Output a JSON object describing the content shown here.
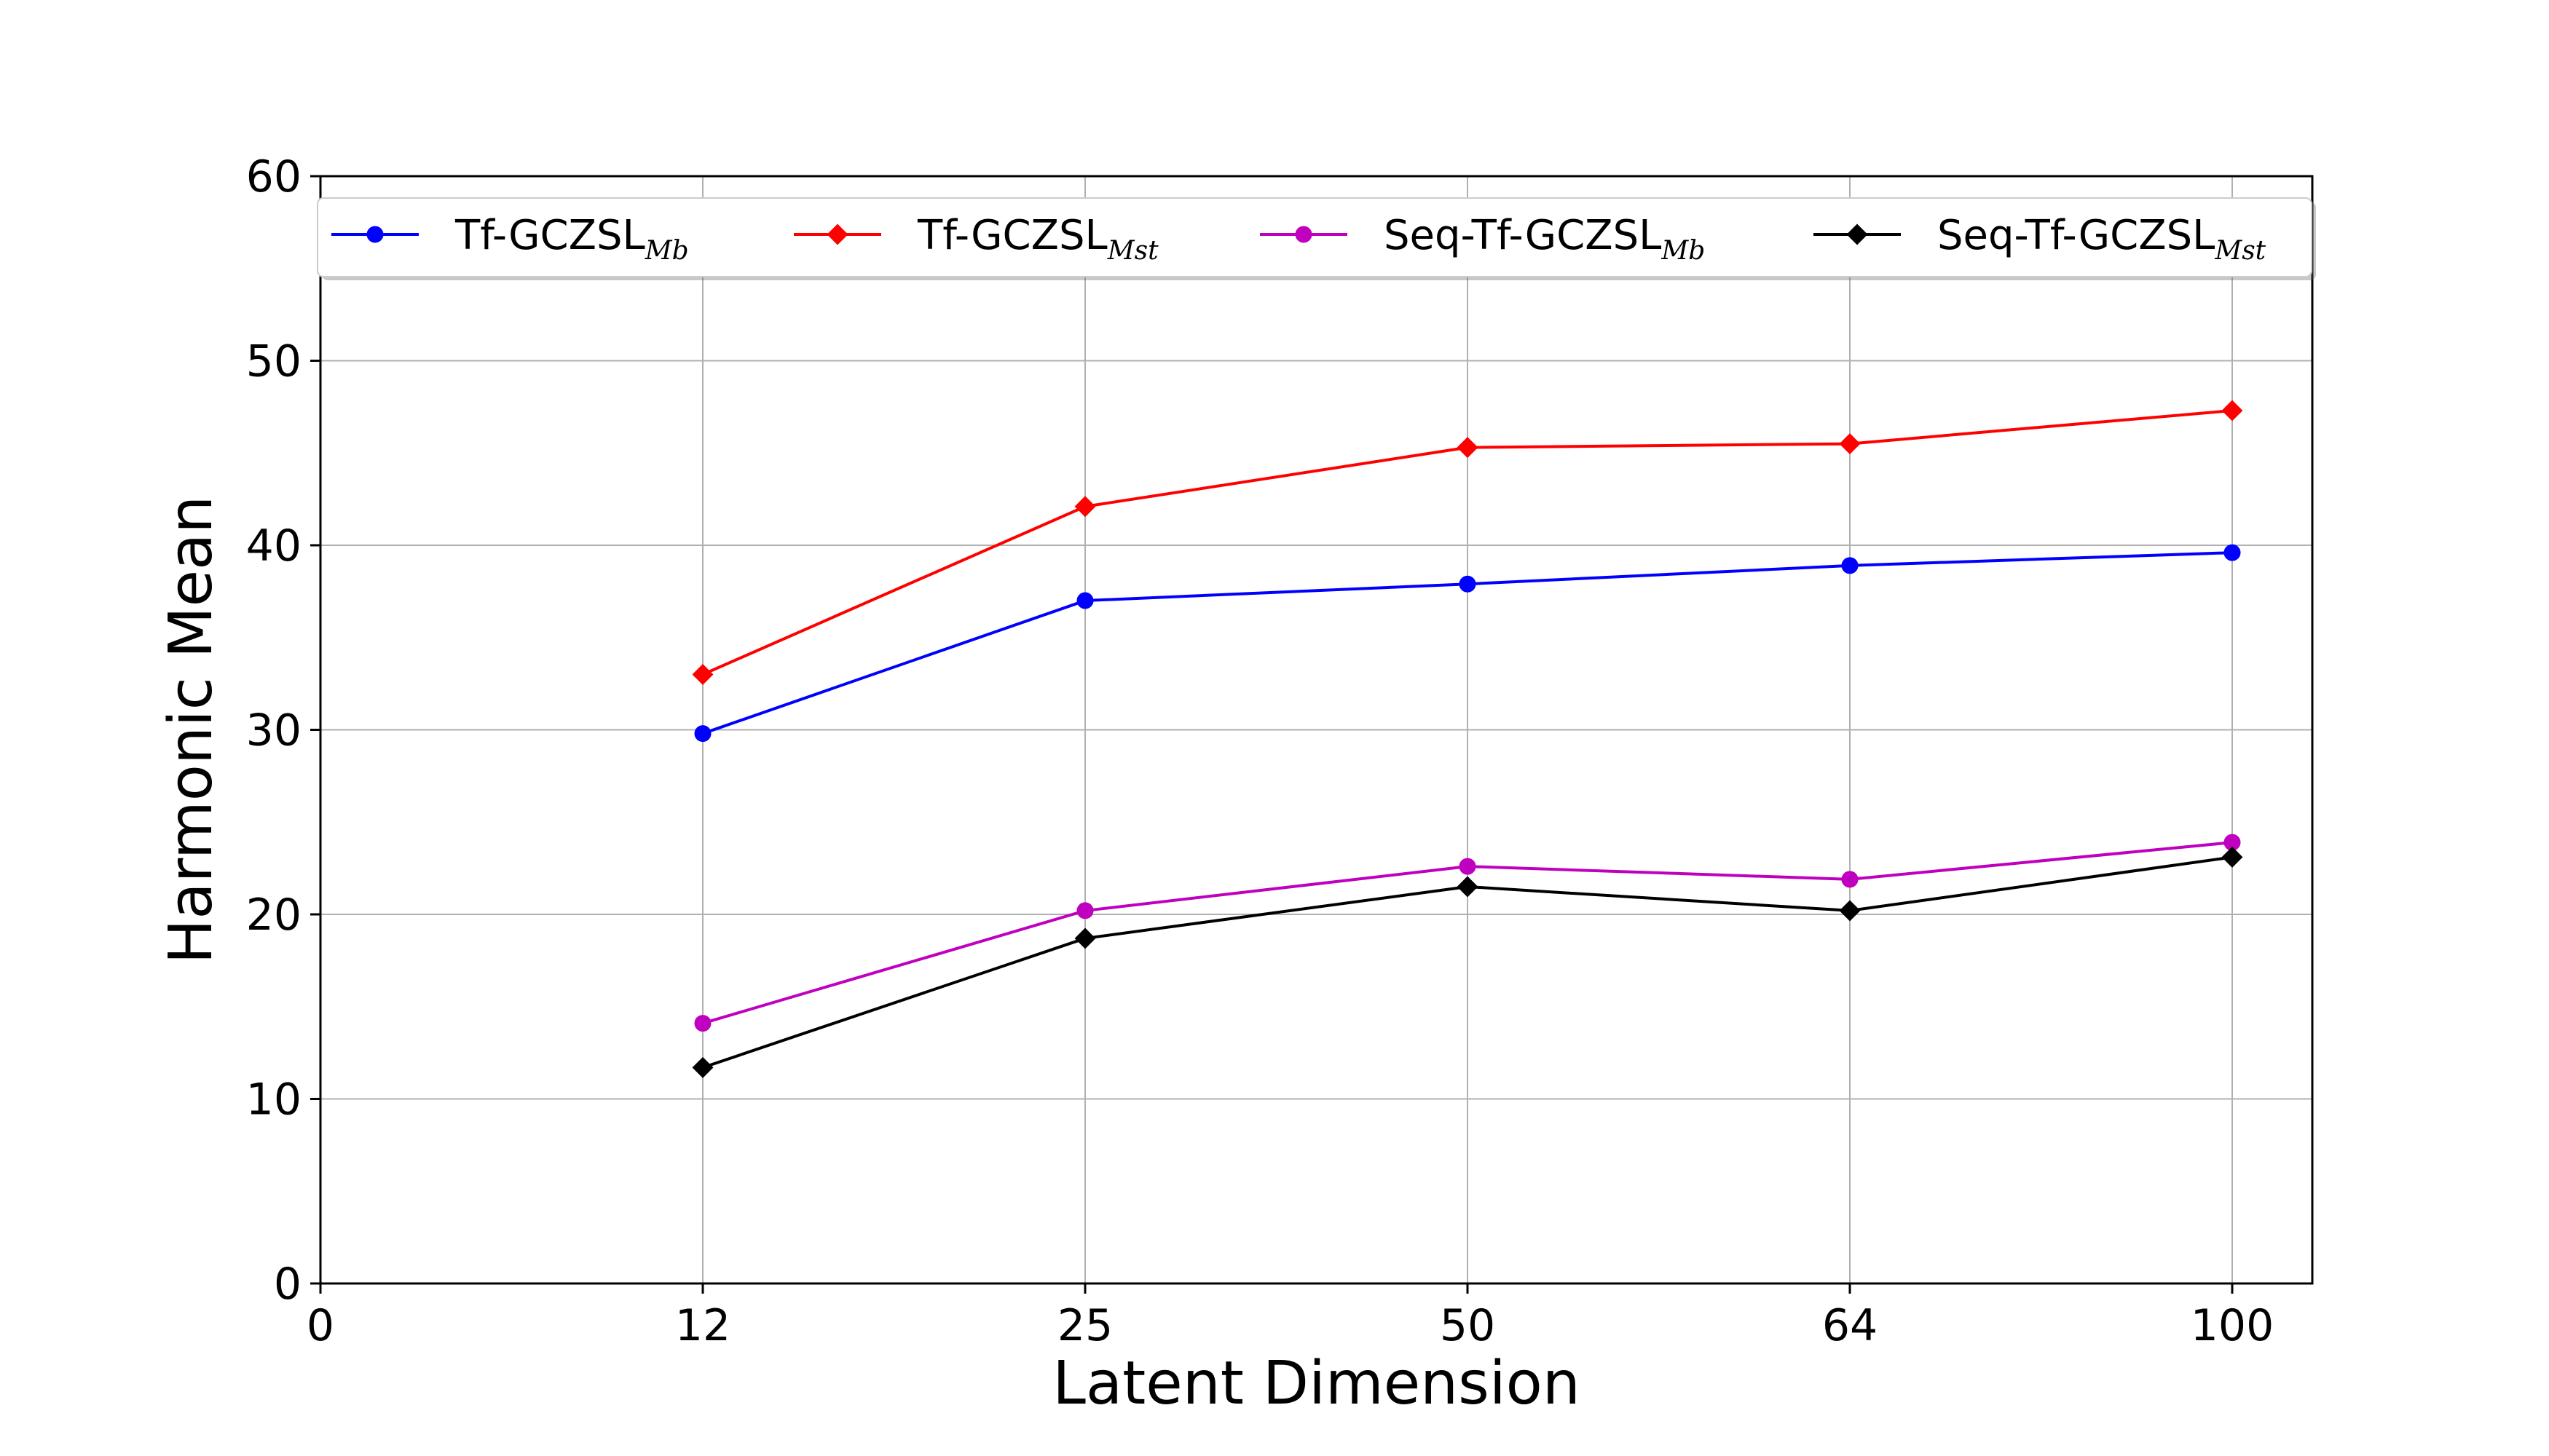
{
  "chart_data": {
    "type": "line",
    "title": "",
    "xlabel": "Latent Dimension",
    "ylabel": "Harmonic Mean",
    "x_tick_labels": [
      "0",
      "12",
      "25",
      "50",
      "64",
      "100"
    ],
    "categories": [
      "12",
      "25",
      "50",
      "64",
      "100"
    ],
    "yticks": [
      "0",
      "10",
      "20",
      "30",
      "40",
      "50",
      "60"
    ],
    "ylim": [
      0,
      60
    ],
    "grid": true,
    "legend_position": "top",
    "series": [
      {
        "name": "Tf-GCZSL",
        "subscript": "Mb",
        "color": "#0000ff",
        "marker": "circle",
        "values": [
          29.8,
          37.0,
          37.9,
          38.9,
          39.6
        ]
      },
      {
        "name": "Tf-GCZSL",
        "subscript": "Mst",
        "color": "#ff0000",
        "marker": "diamond",
        "values": [
          33.0,
          42.1,
          45.3,
          45.5,
          47.3
        ]
      },
      {
        "name": "Seq-Tf-GCZSL",
        "subscript": "Mb",
        "color": "#bf00bf",
        "marker": "circle",
        "values": [
          14.1,
          20.2,
          22.6,
          21.9,
          23.9
        ]
      },
      {
        "name": "Seq-Tf-GCZSL",
        "subscript": "Mst",
        "color": "#000000",
        "marker": "diamond",
        "values": [
          11.7,
          18.7,
          21.5,
          20.2,
          23.1
        ]
      }
    ]
  }
}
